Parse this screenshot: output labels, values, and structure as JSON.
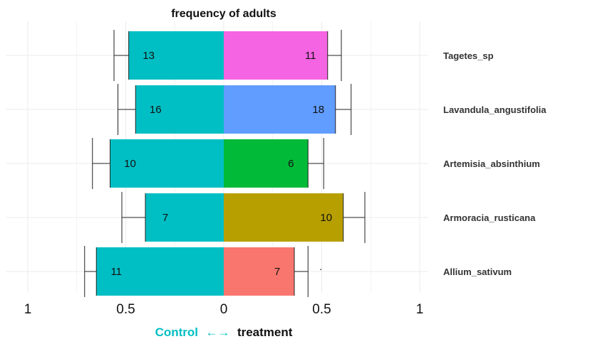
{
  "chart_data": {
    "type": "bar",
    "orientation": "horizontal-diverging",
    "title": "frequency of adults",
    "categories": [
      "Tagetes_sp",
      "Lavandula_angustifolia",
      "Artemisia_absinthium",
      "Armoracia_rusticana",
      "Allium_sativum"
    ],
    "series": [
      {
        "name": "Control",
        "side": "left",
        "color": "#00BFC4",
        "values": [
          0.485,
          0.45,
          0.58,
          0.4,
          0.65
        ],
        "err_upper": [
          0.56,
          0.54,
          0.67,
          0.52,
          0.71
        ],
        "labels": [
          "13",
          "16",
          "10",
          "7",
          "11"
        ]
      },
      {
        "name": "treatment",
        "side": "right",
        "colors": [
          "#F564E3",
          "#619CFF",
          "#00BA38",
          "#B79F00",
          "#F8766D"
        ],
        "values": [
          0.53,
          0.57,
          0.43,
          0.61,
          0.36
        ],
        "err_upper": [
          0.6,
          0.65,
          0.51,
          0.72,
          0.43
        ],
        "labels": [
          "11",
          "18",
          "6",
          "10",
          "7"
        ]
      }
    ],
    "annotations": [
      {
        "category": "Allium_sativum",
        "text": "."
      }
    ],
    "x_tick_values": [
      -1,
      -0.5,
      0,
      0.5,
      1
    ],
    "x_tick_labels": [
      "1",
      "0.5",
      "0",
      "0.5",
      "1"
    ],
    "xlim": [
      -1,
      1
    ],
    "xlabel": {
      "left": "Control",
      "arrow": "←→",
      "right": "treatment",
      "left_color": "#00BFC4"
    },
    "grid": true,
    "legend": "none"
  }
}
